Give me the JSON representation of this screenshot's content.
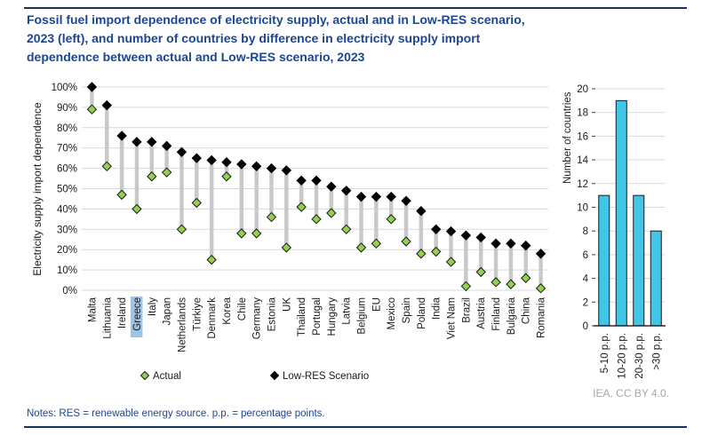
{
  "page": {
    "title_lines": [
      "Fossil fuel import dependence of electricity supply, actual and in Low-RES scenario,",
      "2023 (left), and number of countries by difference in electricity supply import",
      "dependence between actual and Low-RES scenario, 2023"
    ],
    "notes": "Notes: RES = renewable energy source. p.p. = percentage points.",
    "attribution": "IEA. CC BY 4.0."
  },
  "colors": {
    "title_blue": "#1d4691",
    "rule_navy": "#17365d",
    "actual_green": "#92D050",
    "lowres_black": "#000000",
    "bar_cyan": "#41C6E8",
    "highlight": "#9DC3E6",
    "gridline": "#d9d9d9",
    "stem": "#c9c9c9",
    "attribution_gray": "#a6a6a6"
  },
  "legend": {
    "items": [
      {
        "label": "Actual",
        "marker": "diamond",
        "color": "#92D050"
      },
      {
        "label": "Low-RES Scenario",
        "marker": "diamond",
        "color": "#000000"
      }
    ]
  },
  "chart_data": [
    {
      "type": "scatter",
      "subtype": "dumbbell",
      "ylabel": "Electricity supply import dependence",
      "ylim": [
        0,
        100
      ],
      "ytick_step": 10,
      "ytick_format": "percent",
      "grid": true,
      "legend_position": "bottom",
      "highlighted_category": "Greece",
      "categories": [
        "Malta",
        "Lithuania",
        "Ireland",
        "Greece",
        "Italy",
        "Japan",
        "Netherlands",
        "Türkiye",
        "Denmark",
        "Korea",
        "Chile",
        "Germany",
        "Estonia",
        "UK",
        "Thailand",
        "Portugal",
        "Hungary",
        "Latvia",
        "Belgium",
        "EU",
        "Mexico",
        "Spain",
        "Poland",
        "India",
        "Viet Nam",
        "Brazil",
        "Austria",
        "Finland",
        "Bulgaria",
        "China",
        "Romania"
      ],
      "series": [
        {
          "name": "Actual",
          "values": [
            89,
            61,
            47,
            40,
            56,
            58,
            30,
            43,
            15,
            56,
            28,
            28,
            36,
            21,
            41,
            35,
            38,
            30,
            21,
            23,
            35,
            24,
            18,
            19,
            14,
            2,
            9,
            4,
            3,
            6,
            1
          ]
        },
        {
          "name": "Low-RES Scenario",
          "values": [
            100,
            91,
            76,
            73,
            73,
            71,
            68,
            65,
            64,
            63,
            62,
            61,
            60,
            59,
            54,
            54,
            51,
            49,
            46,
            46,
            46,
            44,
            39,
            30,
            29,
            27,
            26,
            23,
            23,
            22,
            18
          ]
        }
      ]
    },
    {
      "type": "bar",
      "ylabel": "Number of countries",
      "ylim": [
        0,
        20
      ],
      "ytick_step": 2,
      "grid": true,
      "categories": [
        "5-10 p.p.",
        "10-20 p.p.",
        "20-30 p.p.",
        ">30 p.p."
      ],
      "values": [
        11,
        19,
        11,
        8
      ]
    }
  ]
}
